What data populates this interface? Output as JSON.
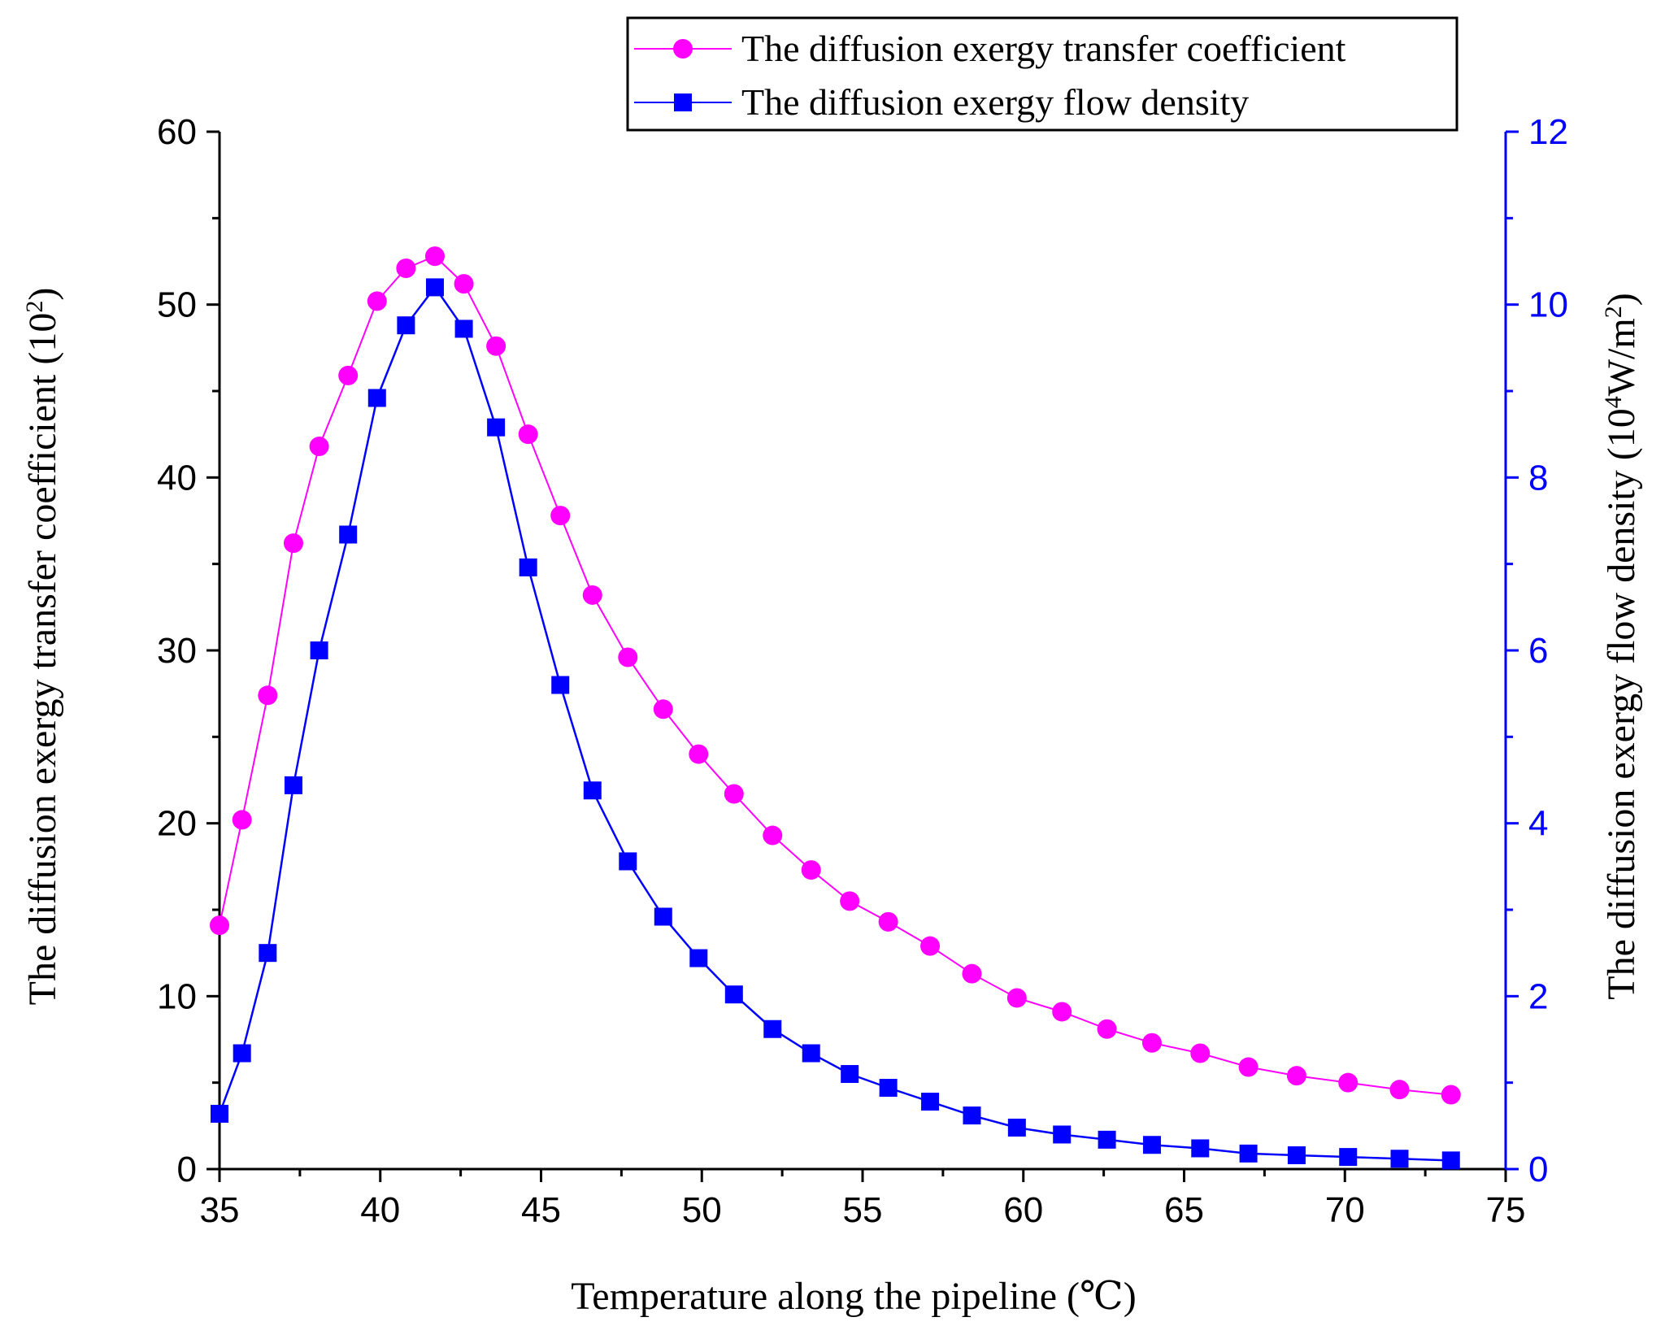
{
  "chart_data": {
    "type": "line",
    "xlabel": "Temperature along the pipeline (℃)",
    "ylabel_left": {
      "main": "The diffusion exergy transfer coefficient (10",
      "sup": "2",
      "tail": ")"
    },
    "ylabel_right": {
      "main": "The diffusion exergy flow density (10",
      "sup": "4",
      "mid": "W/m",
      "sup2": "2",
      "tail": ")"
    },
    "xlim": [
      35,
      75
    ],
    "ylim_left": [
      0,
      60
    ],
    "ylim_right": [
      0,
      12
    ],
    "x_ticks": [
      "35",
      "40",
      "45",
      "50",
      "55",
      "60",
      "65",
      "70",
      "75"
    ],
    "y_left_ticks": [
      "0",
      "10",
      "20",
      "30",
      "40",
      "50",
      "60"
    ],
    "y_right_ticks": [
      "0",
      "2",
      "4",
      "6",
      "8",
      "10",
      "12"
    ],
    "legend_position": "top-right",
    "series": [
      {
        "name": "The diffusion exergy transfer coefficient",
        "axis": "left",
        "color": "#ff00ff",
        "marker": "circle",
        "x": [
          35.0,
          35.7,
          36.5,
          37.3,
          38.1,
          39.0,
          39.9,
          40.8,
          41.7,
          42.6,
          43.6,
          44.6,
          45.6,
          46.6,
          47.7,
          48.8,
          49.9,
          51.0,
          52.2,
          53.4,
          54.6,
          55.8,
          57.1,
          58.4,
          59.8,
          61.2,
          62.6,
          64.0,
          65.5,
          67.0,
          68.5,
          70.1,
          71.7,
          73.3
        ],
        "y": [
          14.1,
          20.2,
          27.4,
          36.2,
          41.8,
          45.9,
          50.2,
          52.1,
          52.8,
          51.2,
          47.6,
          42.5,
          37.8,
          33.2,
          29.6,
          26.6,
          24.0,
          21.7,
          19.3,
          17.3,
          15.5,
          14.3,
          12.9,
          11.3,
          9.9,
          9.1,
          8.1,
          7.3,
          6.7,
          5.9,
          5.4,
          5.0,
          4.6,
          4.3
        ]
      },
      {
        "name": "The diffusion exergy flow density",
        "axis": "right",
        "color": "#0000ff",
        "marker": "square",
        "x": [
          35.0,
          35.7,
          36.5,
          37.3,
          38.1,
          39.0,
          39.9,
          40.8,
          41.7,
          42.6,
          43.6,
          44.6,
          45.6,
          46.6,
          47.7,
          48.8,
          49.9,
          51.0,
          52.2,
          53.4,
          54.6,
          55.8,
          57.1,
          58.4,
          59.8,
          61.2,
          62.6,
          64.0,
          65.5,
          67.0,
          68.5,
          70.1,
          71.7,
          73.3
        ],
        "y": [
          0.64,
          1.34,
          2.5,
          4.44,
          6.0,
          7.34,
          8.92,
          9.76,
          10.2,
          9.72,
          8.58,
          6.96,
          5.6,
          4.38,
          3.56,
          2.92,
          2.44,
          2.02,
          1.62,
          1.34,
          1.1,
          0.94,
          0.78,
          0.62,
          0.48,
          0.4,
          0.34,
          0.28,
          0.24,
          0.18,
          0.16,
          0.14,
          0.12,
          0.1
        ]
      }
    ]
  }
}
